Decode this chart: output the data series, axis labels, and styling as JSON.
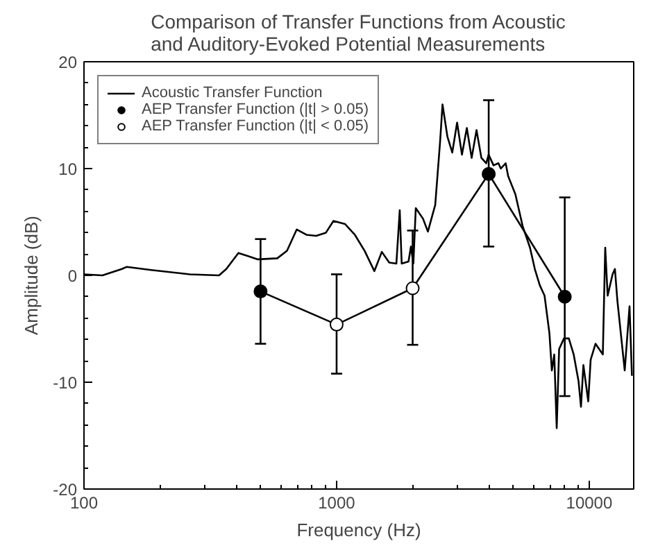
{
  "chart_data": {
    "type": "line",
    "title": "Comparison of Transfer Functions from Acoustic\nand Auditory-Evoked Potential Measurements",
    "xlabel": "Frequency (Hz)",
    "ylabel": "Amplitude (dB)",
    "log": "x",
    "xlim": [
      100,
      15000
    ],
    "xticks": [
      100,
      1000,
      10000
    ],
    "ylim": [
      -20,
      20
    ],
    "yticks": [
      -20,
      -10,
      0,
      10,
      20
    ],
    "grid": false,
    "legend": "top left",
    "series": [
      {
        "name": "Acoustic Transfer Function",
        "color": "#000000",
        "marker": "none",
        "x": [
          100,
          118.3,
          141.3,
          147.7,
          184.5,
          262.6,
          342.5,
          365.9,
          408.6,
          446.6,
          487.9,
          582.3,
          636.3,
          695.4,
          759.8,
          830.3,
          907.4,
          971.6,
          1081,
          1181,
          1291,
          1411,
          1510,
          1615,
          1724,
          1778,
          1810,
          1926,
          1969,
          2013,
          2058,
          2199,
          2298,
          2457,
          2568,
          2626,
          2745,
          2870,
          2999,
          3135,
          3277,
          3425,
          3580,
          3742,
          3911,
          3999,
          4180,
          4370,
          4467,
          4669,
          4775,
          5101,
          5452,
          5828,
          6091,
          6367,
          6655,
          6956,
          7113,
          7271,
          7435,
          7600,
          7943,
          8303,
          8679,
          9072,
          9276,
          9483,
          9913,
          10130,
          10590,
          11320,
          11570,
          11830,
          12370,
          12640,
          12930,
          13820,
          14440,
          14760
        ],
        "values": [
          0.1,
          0,
          0.6,
          0.8,
          0.5,
          0.1,
          0,
          0.6,
          2.1,
          1.8,
          1.5,
          1.6,
          2.3,
          4.3,
          3.8,
          3.7,
          4.0,
          5.1,
          4.8,
          3.8,
          2.3,
          0.4,
          2.2,
          1.2,
          1.1,
          6.1,
          1.1,
          1.3,
          2.7,
          1.1,
          6.3,
          5.3,
          4.1,
          6.6,
          12.5,
          16.0,
          13.0,
          11.5,
          14.3,
          11.3,
          13.8,
          11.0,
          13.6,
          11.0,
          10.5,
          11.3,
          10.3,
          10.5,
          10.0,
          10.5,
          9.3,
          7.6,
          4.6,
          2.6,
          0.6,
          -0.9,
          -1.9,
          -5.4,
          -8.9,
          -7.4,
          -14.3,
          -6.9,
          -5.9,
          -5.9,
          -7.4,
          -9.9,
          -12.3,
          -8.4,
          -11.8,
          -7.9,
          -6.4,
          -7.4,
          2.6,
          -1.9,
          0.1,
          0.6,
          -2.4,
          -8.9,
          -2.9,
          -9.4
        ]
      },
      {
        "color": "#000000",
        "marker": "none",
        "x": [
          500,
          1000,
          2000,
          4000,
          8000
        ],
        "values": [
          -1.5,
          -4.6,
          -1.2,
          9.5,
          -2.0
        ]
      },
      {
        "name": "AEP Transfer Function (|t| > 0.05)",
        "type": "scatter",
        "color": "#000000",
        "marker": "circle",
        "x": [
          500,
          4000,
          8000
        ],
        "values": [
          -1.5,
          9.5,
          -2.0
        ],
        "errors": [
          [
            -6.4,
            3.4
          ],
          [
            2.7,
            16.4
          ],
          [
            -11.3,
            7.3
          ]
        ]
      },
      {
        "name": "AEP Transfer Function (|t| < 0.05)",
        "type": "scatter",
        "color": "#ffffff",
        "marker": "circle",
        "x": [
          1000,
          2000
        ],
        "values": [
          -4.6,
          -1.2
        ],
        "errors": [
          [
            -9.2,
            0.1
          ],
          [
            -6.5,
            4.2
          ]
        ]
      }
    ]
  }
}
